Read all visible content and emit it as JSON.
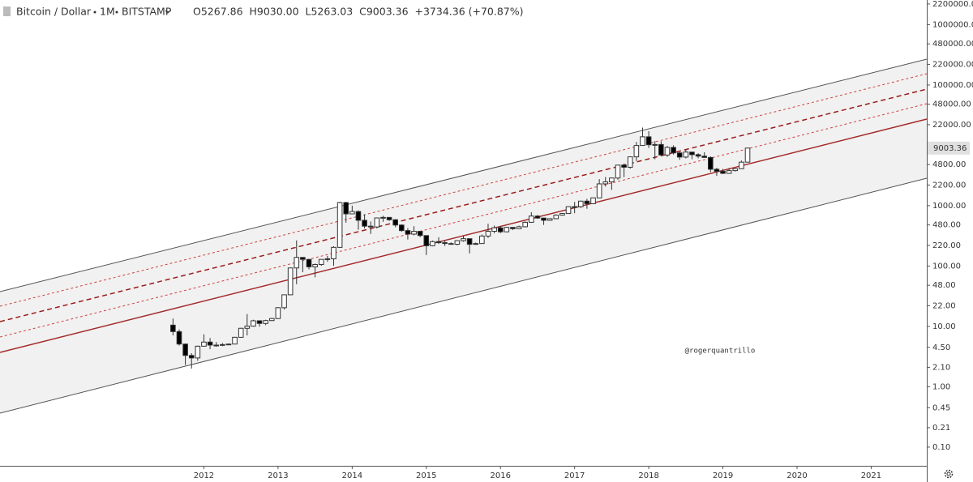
{
  "chart_data": {
    "type": "candlestick",
    "symbol": "Bitcoin / Dollar",
    "interval": "1M",
    "exchange": "BITSTAMP",
    "ohlc_legend": "O5267.86  H9030.00  L5263.03  C9003.36  +3734.36 (+70.87%)",
    "annotation": "@rogerquantrillo",
    "log_scale": true,
    "grid": false,
    "up_color": "#ffffff",
    "down_color": "#000000",
    "border_color": "#333333",
    "xlim": [
      "2009-04",
      "2021-10"
    ],
    "xticks": [
      2012,
      2013,
      2014,
      2015,
      2016,
      2017,
      2018,
      2019,
      2020,
      2021
    ],
    "ylim": [
      0.049,
      2560000
    ],
    "yticks": [
      {
        "value": 2200000,
        "label": "2200000.00"
      },
      {
        "value": 1000000,
        "label": "1000000.00"
      },
      {
        "value": 480000,
        "label": "480000.00"
      },
      {
        "value": 220000,
        "label": "220000.00"
      },
      {
        "value": 100000,
        "label": "100000.00"
      },
      {
        "value": 48000,
        "label": "48000.00"
      },
      {
        "value": 22000,
        "label": "22000.00"
      },
      {
        "value": 4800,
        "label": "4800.00"
      },
      {
        "value": 2200,
        "label": "2200.00"
      },
      {
        "value": 1000,
        "label": "1000.00"
      },
      {
        "value": 480,
        "label": "480.00"
      },
      {
        "value": 220,
        "label": "220.00"
      },
      {
        "value": 100,
        "label": "100.00"
      },
      {
        "value": 48,
        "label": "48.00"
      },
      {
        "value": 22,
        "label": "22.00"
      },
      {
        "value": 10,
        "label": "10.00"
      },
      {
        "value": 4.5,
        "label": "4.50"
      },
      {
        "value": 2.1,
        "label": "2.10"
      },
      {
        "value": 1,
        "label": "1.00"
      },
      {
        "value": 0.45,
        "label": "0.45"
      },
      {
        "value": 0.21,
        "label": "0.21"
      },
      {
        "value": 0.1,
        "label": "0.10"
      }
    ],
    "x": [
      "2011-08",
      "2011-09",
      "2011-10",
      "2011-11",
      "2011-12",
      "2012-01",
      "2012-02",
      "2012-03",
      "2012-04",
      "2012-05",
      "2012-06",
      "2012-07",
      "2012-08",
      "2012-09",
      "2012-10",
      "2012-11",
      "2012-12",
      "2013-01",
      "2013-02",
      "2013-03",
      "2013-04",
      "2013-05",
      "2013-06",
      "2013-07",
      "2013-08",
      "2013-09",
      "2013-10",
      "2013-11",
      "2013-12",
      "2014-01",
      "2014-02",
      "2014-03",
      "2014-04",
      "2014-05",
      "2014-06",
      "2014-07",
      "2014-08",
      "2014-09",
      "2014-10",
      "2014-11",
      "2014-12",
      "2015-01",
      "2015-02",
      "2015-03",
      "2015-04",
      "2015-05",
      "2015-06",
      "2015-07",
      "2015-08",
      "2015-09",
      "2015-10",
      "2015-11",
      "2015-12",
      "2016-01",
      "2016-02",
      "2016-03",
      "2016-04",
      "2016-05",
      "2016-06",
      "2016-07",
      "2016-08",
      "2016-09",
      "2016-10",
      "2016-11",
      "2016-12",
      "2017-01",
      "2017-02",
      "2017-03",
      "2017-04",
      "2017-05",
      "2017-06",
      "2017-07",
      "2017-08",
      "2017-09",
      "2017-10",
      "2017-11",
      "2017-12",
      "2018-01",
      "2018-02",
      "2018-03",
      "2018-04",
      "2018-05",
      "2018-06",
      "2018-07",
      "2018-08",
      "2018-09",
      "2018-10",
      "2018-11",
      "2018-12",
      "2019-01",
      "2019-02",
      "2019-03",
      "2019-04",
      "2019-05"
    ],
    "series": [
      {
        "name": "Bitcoin / Dollar",
        "open": [
          10.5,
          8.2,
          5.1,
          3.3,
          3.0,
          4.7,
          5.5,
          4.9,
          4.9,
          5.0,
          5.1,
          6.6,
          9.3,
          10.1,
          12.4,
          11.2,
          12.5,
          13.5,
          20.4,
          33.4,
          93,
          139,
          129,
          97,
          106,
          129,
          132,
          204,
          1127,
          732,
          800,
          573,
          458,
          444,
          627,
          640,
          585,
          478,
          387,
          338,
          376,
          320,
          217,
          254,
          244,
          236,
          230,
          263,
          284,
          229,
          236,
          314,
          377,
          430,
          369,
          437,
          416,
          448,
          531,
          673,
          624,
          573,
          609,
          698,
          742,
          963,
          965,
          1190,
          1079,
          1348,
          2300,
          2480,
          2875,
          4703,
          4339,
          6447,
          9946,
          13850,
          10221,
          10326,
          6926,
          9240,
          7494,
          6391,
          7735,
          7011,
          6626,
          6300,
          4017,
          3709,
          3437,
          3813,
          4103,
          5267.86
        ],
        "high": [
          13.5,
          8.9,
          5.2,
          3.6,
          4.8,
          7.4,
          6.4,
          5.5,
          5.3,
          5.2,
          6.7,
          9.5,
          16.0,
          12.9,
          12.5,
          12.9,
          13.8,
          20.9,
          33.4,
          95,
          266,
          140,
          130,
          110,
          130,
          147,
          213,
          1163,
          1163,
          1000,
          838,
          719,
          547,
          633,
          680,
          640,
          600,
          492,
          425,
          458,
          383,
          320,
          265,
          300,
          262,
          247,
          268,
          318,
          285,
          245,
          333,
          502,
          469,
          462,
          446,
          439,
          467,
          548,
          780,
          702,
          627,
          619,
          720,
          756,
          979,
          1154,
          1212,
          1300,
          1350,
          2760,
          2980,
          2916,
          4750,
          4980,
          6470,
          11400,
          19666,
          17176,
          11789,
          11700,
          9759,
          9990,
          7780,
          8507,
          7750,
          7400,
          7680,
          6570,
          4236,
          4080,
          4210,
          4140,
          5600,
          9030.0
        ],
        "low": [
          7.1,
          4.8,
          2.3,
          2.0,
          2.7,
          4.6,
          4.2,
          4.6,
          4.7,
          4.9,
          5.1,
          6.5,
          7.1,
          9.9,
          9.9,
          10.5,
          12.2,
          13.3,
          19.1,
          33,
          50,
          79,
          88,
          65,
          101,
          118,
          101,
          199,
          522,
          731,
          400,
          420,
          340,
          420,
          540,
          560,
          440,
          370,
          275,
          322,
          301,
          152,
          212,
          232,
          215,
          227,
          220,
          253,
          162,
          224,
          236,
          292,
          349,
          350,
          364,
          396,
          412,
          436,
          520,
          605,
          480,
          568,
          603,
          684,
          742,
          751,
          916,
          890,
          1079,
          1348,
          2076,
          1830,
          2690,
          2970,
          4110,
          5511,
          9900,
          9050,
          5873,
          6600,
          6425,
          7034,
          5755,
          6070,
          5880,
          6100,
          6200,
          3600,
          3122,
          3349,
          3372,
          3690,
          4070,
          5263.03
        ],
        "close": [
          8.2,
          5.1,
          3.3,
          3.0,
          4.7,
          5.5,
          4.9,
          4.9,
          5.0,
          5.1,
          6.6,
          9.3,
          10.1,
          12.4,
          11.2,
          12.5,
          13.5,
          20.4,
          33.4,
          93,
          139,
          129,
          97,
          106,
          129,
          132,
          204,
          1127,
          732,
          800,
          573,
          458,
          444,
          627,
          640,
          585,
          478,
          387,
          338,
          376,
          320,
          217,
          254,
          244,
          236,
          230,
          263,
          284,
          229,
          236,
          314,
          377,
          430,
          369,
          437,
          416,
          448,
          531,
          673,
          624,
          573,
          609,
          698,
          742,
          963,
          965,
          1190,
          1079,
          1348,
          2300,
          2480,
          2875,
          4703,
          4339,
          6447,
          9946,
          13850,
          10221,
          10326,
          6926,
          9240,
          7494,
          6391,
          7735,
          7011,
          6626,
          6300,
          4017,
          3709,
          3437,
          3813,
          4103,
          5268,
          9003.36
        ]
      }
    ]
  }
}
